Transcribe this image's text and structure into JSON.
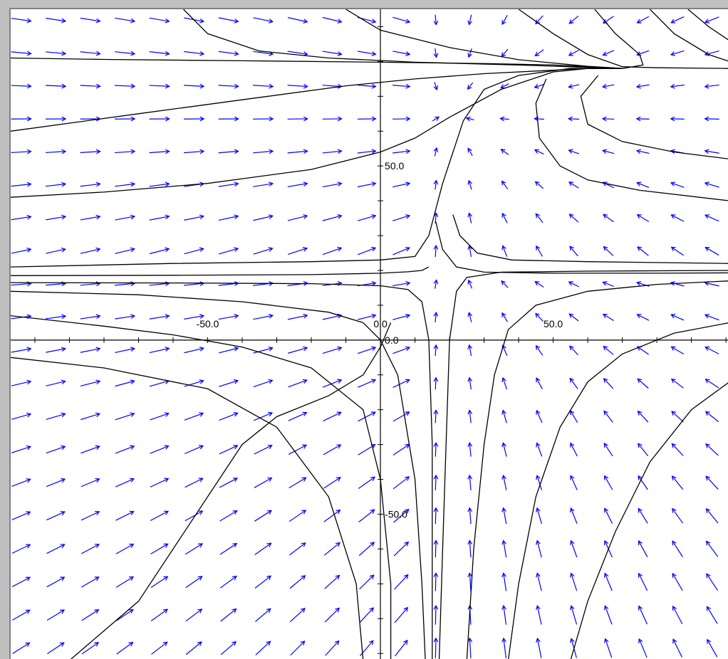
{
  "colors": {
    "background": "#c0c0c0",
    "plot_bg": "#ffffff",
    "axes": "#000000",
    "field_arrows": "#0000ff",
    "trajectories": "#000000"
  },
  "chart_data": {
    "type": "direction-field",
    "title": "",
    "xlabel": "",
    "ylabel": "",
    "xlim": [
      -107,
      101
    ],
    "ylim": [
      -92,
      95
    ],
    "x_tick_labels": [
      {
        "x": -50,
        "label": "-50.0"
      },
      {
        "x": 0,
        "label": "0.0"
      },
      {
        "x": 50,
        "label": "50.0"
      }
    ],
    "y_tick_labels": [
      {
        "y": 50,
        "label": "50.0"
      },
      {
        "y": 0,
        "label": "0.0"
      },
      {
        "y": -50,
        "label": "-50.0"
      }
    ],
    "grid": false,
    "legend": "none",
    "field": {
      "equilibria": [
        [
          0,
          80
        ],
        [
          15,
          20
        ],
        [
          70,
          64
        ]
      ],
      "grid_x_step": 10,
      "grid_y_step": 9.5
    },
    "trajectories": [
      [
        [
          -107,
          81
        ],
        [
          -80,
          80.6
        ],
        [
          -40,
          80.2
        ],
        [
          0,
          79.8
        ],
        [
          30,
          79.4
        ],
        [
          50,
          79
        ],
        [
          60,
          78.5
        ],
        [
          70,
          78
        ]
      ],
      [
        [
          -107,
          41
        ],
        [
          -80,
          42.5
        ],
        [
          -50,
          45
        ],
        [
          -20,
          49
        ],
        [
          0,
          54
        ],
        [
          10,
          58
        ],
        [
          20,
          64
        ],
        [
          35,
          72
        ],
        [
          50,
          77
        ],
        [
          60,
          78
        ],
        [
          70,
          78
        ]
      ],
      [
        [
          -107,
          60
        ],
        [
          -70,
          65
        ],
        [
          -40,
          69
        ],
        [
          -10,
          73
        ],
        [
          10,
          75
        ],
        [
          30,
          76.5
        ],
        [
          50,
          77.5
        ],
        [
          60,
          78
        ],
        [
          70,
          78
        ]
      ],
      [
        [
          -107,
          21
        ],
        [
          -60,
          22
        ],
        [
          -20,
          22.5
        ],
        [
          0,
          23
        ],
        [
          10,
          24
        ],
        [
          14,
          30
        ],
        [
          18,
          45
        ],
        [
          24,
          63
        ],
        [
          30,
          72
        ],
        [
          40,
          76
        ],
        [
          55,
          78
        ],
        [
          70,
          78
        ]
      ],
      [
        [
          -107,
          18.5
        ],
        [
          -60,
          18.6
        ],
        [
          -20,
          18.8
        ],
        [
          0,
          19.2
        ],
        [
          8,
          19.6
        ],
        [
          12,
          20
        ],
        [
          14,
          21
        ]
      ],
      [
        [
          -107,
          16.5
        ],
        [
          -60,
          16.4
        ],
        [
          -20,
          16.2
        ],
        [
          0,
          15.6
        ],
        [
          8,
          14.5
        ],
        [
          12,
          11
        ],
        [
          14,
          0
        ],
        [
          15,
          -30
        ],
        [
          15,
          -92
        ]
      ],
      [
        [
          -107,
          14
        ],
        [
          -70,
          13
        ],
        [
          -40,
          11
        ],
        [
          -15,
          8
        ],
        [
          -5,
          5
        ],
        [
          0,
          0
        ],
        [
          5,
          -10
        ],
        [
          10,
          -40
        ],
        [
          12,
          -70
        ],
        [
          13,
          -92
        ]
      ],
      [
        [
          -107,
          7
        ],
        [
          -80,
          4
        ],
        [
          -60,
          1.5
        ],
        [
          -40,
          -2
        ],
        [
          -20,
          -8
        ],
        [
          -5,
          -20
        ],
        [
          0,
          -40
        ],
        [
          3,
          -70
        ],
        [
          3,
          -92
        ]
      ],
      [
        [
          -107,
          -5
        ],
        [
          -80,
          -8
        ],
        [
          -50,
          -14
        ],
        [
          -30,
          -25
        ],
        [
          -15,
          -45
        ],
        [
          -7,
          -70
        ],
        [
          -5,
          -92
        ]
      ],
      [
        [
          -90,
          -92
        ],
        [
          -70,
          -75
        ],
        [
          -50,
          -45
        ],
        [
          -40,
          -30
        ],
        [
          -30,
          -22
        ],
        [
          -15,
          -16
        ],
        [
          -5,
          -10
        ],
        [
          0,
          -2
        ],
        [
          3,
          5
        ]
      ],
      [
        [
          17,
          -92
        ],
        [
          18,
          -60
        ],
        [
          19,
          -30
        ],
        [
          20,
          0
        ],
        [
          22,
          14
        ],
        [
          25,
          18
        ],
        [
          35,
          19.5
        ],
        [
          60,
          19.8
        ],
        [
          101,
          20
        ]
      ],
      [
        [
          25,
          -92
        ],
        [
          27,
          -60
        ],
        [
          30,
          -30
        ],
        [
          33,
          -10
        ],
        [
          37,
          3
        ],
        [
          45,
          10
        ],
        [
          60,
          14
        ],
        [
          80,
          16
        ],
        [
          101,
          17
        ]
      ],
      [
        [
          37,
          -92
        ],
        [
          40,
          -70
        ],
        [
          45,
          -45
        ],
        [
          52,
          -25
        ],
        [
          60,
          -12
        ],
        [
          70,
          -4
        ],
        [
          85,
          2
        ],
        [
          101,
          5
        ]
      ],
      [
        [
          55,
          -92
        ],
        [
          60,
          -75
        ],
        [
          68,
          -55
        ],
        [
          78,
          -35
        ],
        [
          90,
          -20
        ],
        [
          101,
          -12
        ]
      ],
      [
        [
          16,
          34
        ],
        [
          18,
          26
        ],
        [
          22,
          21
        ],
        [
          30,
          19.5
        ],
        [
          50,
          19.2
        ],
        [
          80,
          19.2
        ],
        [
          101,
          19.3
        ]
      ],
      [
        [
          21,
          36
        ],
        [
          23,
          30
        ],
        [
          28,
          25
        ],
        [
          38,
          23
        ],
        [
          60,
          22.5
        ],
        [
          101,
          22
        ]
      ],
      [
        [
          48,
          75
        ],
        [
          45,
          68
        ],
        [
          46,
          58
        ],
        [
          52,
          50
        ],
        [
          60,
          46
        ],
        [
          75,
          43
        ],
        [
          101,
          40
        ]
      ],
      [
        [
          63,
          76
        ],
        [
          58,
          70
        ],
        [
          60,
          62
        ],
        [
          70,
          57
        ],
        [
          85,
          54
        ],
        [
          101,
          52
        ]
      ],
      [
        [
          -57,
          95
        ],
        [
          -50,
          88
        ],
        [
          -35,
          83
        ],
        [
          -15,
          81
        ],
        [
          10,
          79.8
        ],
        [
          40,
          79
        ],
        [
          60,
          78.3
        ],
        [
          70,
          78
        ]
      ],
      [
        [
          -10,
          95
        ],
        [
          0,
          89
        ],
        [
          20,
          84
        ],
        [
          40,
          80.5
        ],
        [
          60,
          78.6
        ],
        [
          70,
          78
        ]
      ],
      [
        [
          40,
          95
        ],
        [
          50,
          88
        ],
        [
          60,
          82
        ],
        [
          70,
          78.5
        ],
        [
          80,
          78.2
        ],
        [
          101,
          78
        ]
      ],
      [
        [
          62,
          95
        ],
        [
          68,
          88
        ],
        [
          75,
          82
        ],
        [
          76,
          79
        ],
        [
          72,
          78.3
        ],
        [
          70,
          78
        ]
      ],
      [
        [
          78,
          95
        ],
        [
          85,
          88
        ],
        [
          95,
          82
        ],
        [
          101,
          80
        ]
      ],
      [
        [
          89,
          95
        ],
        [
          95,
          90
        ],
        [
          101,
          86
        ]
      ]
    ]
  }
}
